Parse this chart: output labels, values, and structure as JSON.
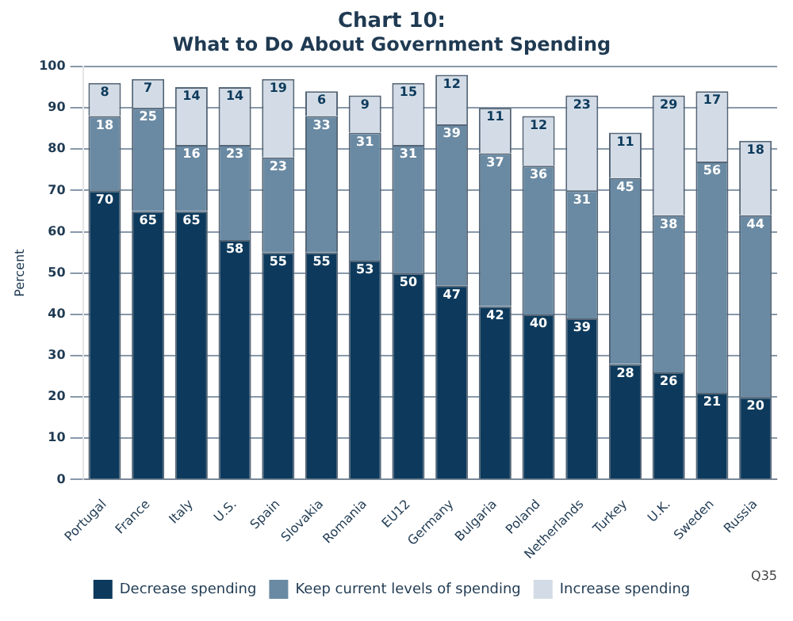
{
  "chart_data": {
    "type": "bar",
    "stacked": true,
    "title": "Chart 10:",
    "subtitle": "What to Do About Government Spending",
    "ylabel": "Percent",
    "categories": [
      "Portugal",
      "France",
      "Italy",
      "U.S.",
      "Spain",
      "Slovakia",
      "Romania",
      "EU12",
      "Germany",
      "Bulgaria",
      "Poland",
      "Netherlands",
      "Turkey",
      "U.K.",
      "Sweden",
      "Russia"
    ],
    "series": [
      {
        "name": "Decrease spending",
        "color": "#0d3a5c",
        "values": [
          70,
          65,
          65,
          58,
          55,
          55,
          53,
          50,
          47,
          42,
          40,
          39,
          28,
          26,
          21,
          20
        ]
      },
      {
        "name": "Keep current levels of spending",
        "color": "#6a8aa3",
        "values": [
          18,
          25,
          16,
          23,
          23,
          33,
          31,
          31,
          39,
          37,
          36,
          31,
          45,
          38,
          56,
          44
        ]
      },
      {
        "name": "Increase spending",
        "color": "#d3dce6",
        "values": [
          8,
          7,
          14,
          14,
          19,
          6,
          9,
          15,
          12,
          11,
          12,
          23,
          11,
          29,
          17,
          18
        ]
      }
    ],
    "ylim": [
      0,
      100
    ],
    "yticks": [
      0,
      10,
      20,
      30,
      40,
      50,
      60,
      70,
      80,
      90,
      100
    ],
    "grid": "y",
    "legend": "bottom",
    "data_labels": true,
    "annotations": [
      "Q35"
    ]
  }
}
